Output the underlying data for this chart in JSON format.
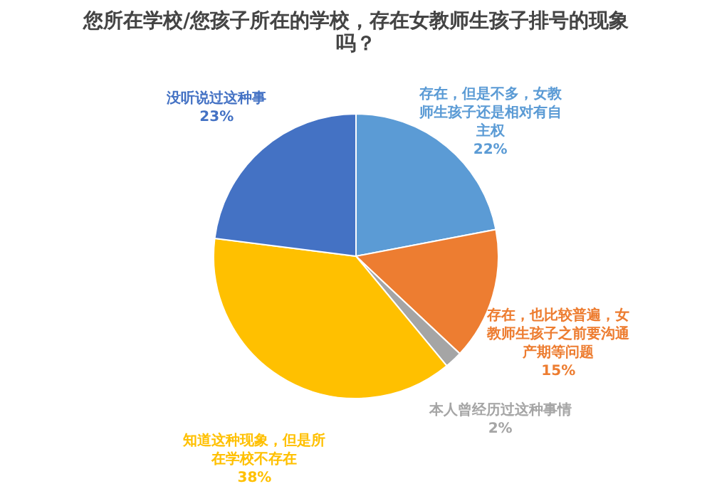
{
  "chart_data": {
    "type": "pie",
    "title": "您所在学校/您孩子所在的学校，存在女教师生孩子排号的现象吗？",
    "categories": [
      "存在，但是不多，女教师生孩子还是相对有自主权",
      "存在，也比较普遍，女教师生孩子之前要沟通产期等问题",
      "本人曾经历过这种事情",
      "知道这种现象，但是所在学校不存在",
      "没听说过这种事"
    ],
    "values": [
      22,
      15,
      2,
      38,
      23
    ],
    "value_labels": [
      "22%",
      "15%",
      "2%",
      "38%",
      "23%"
    ],
    "colors": [
      "#5b9bd5",
      "#ed7d31",
      "#a5a5a5",
      "#ffc000",
      "#4472c4"
    ]
  }
}
